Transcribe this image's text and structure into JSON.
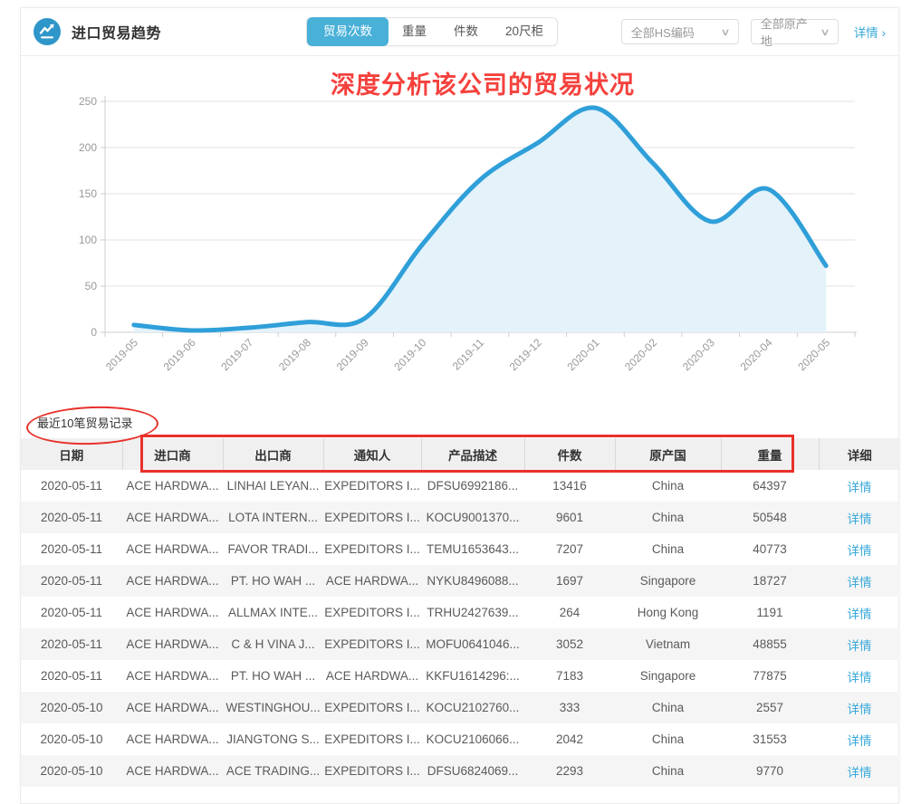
{
  "colors": {
    "accent_blue": "#49b0d8",
    "icon_blue": "#2e96c8",
    "chart_line": "#2f9fd9",
    "chart_fill": "#e4f2fa",
    "annotation_red": "#e8312b",
    "link_blue": "#3aa9d9"
  },
  "header": {
    "title": "进口贸易趋势",
    "tabs": [
      {
        "label": "贸易次数",
        "active": true
      },
      {
        "label": "重量",
        "active": false
      },
      {
        "label": "件数",
        "active": false
      },
      {
        "label": "20尺柜",
        "active": false
      }
    ],
    "filters": [
      {
        "value": "全部HS编码"
      },
      {
        "value": "全部原产地"
      }
    ],
    "details_link": "详情",
    "details_chevron": "›"
  },
  "annotation": {
    "chart_note": "深度分析该公司的贸易状况"
  },
  "chart_data": {
    "type": "area",
    "title": "",
    "xlabel": "",
    "ylabel": "",
    "categories": [
      "2019-05",
      "2019-06",
      "2019-07",
      "2019-08",
      "2019-09",
      "2019-10",
      "2019-11",
      "2019-12",
      "2020-01",
      "2020-02",
      "2020-03",
      "2020-04",
      "2020-05"
    ],
    "values": [
      8,
      2,
      5,
      11,
      15,
      95,
      165,
      205,
      243,
      183,
      120,
      155,
      72
    ],
    "ylim": [
      0,
      250
    ],
    "ytick_step": 50,
    "grid": true,
    "smooth": true,
    "legend_position": "none"
  },
  "records": {
    "section_title": "最近10笔贸易记录",
    "columns": [
      "日期",
      "进口商",
      "出口商",
      "通知人",
      "产品描述",
      "件数",
      "原产国",
      "重量",
      "详细"
    ],
    "detail_label": "详情",
    "rows": [
      {
        "date": "2020-05-11",
        "importer": "ACE HARDWA...",
        "exporter": "LINHAI LEYAN...",
        "notify": "EXPEDITORS I...",
        "product": "DFSU6992186...",
        "pieces": "13416",
        "origin": "China",
        "weight": "64397"
      },
      {
        "date": "2020-05-11",
        "importer": "ACE HARDWA...",
        "exporter": "LOTA INTERN...",
        "notify": "EXPEDITORS I...",
        "product": "KOCU9001370...",
        "pieces": "9601",
        "origin": "China",
        "weight": "50548"
      },
      {
        "date": "2020-05-11",
        "importer": "ACE HARDWA...",
        "exporter": "FAVOR TRADI...",
        "notify": "EXPEDITORS I...",
        "product": "TEMU1653643...",
        "pieces": "7207",
        "origin": "China",
        "weight": "40773"
      },
      {
        "date": "2020-05-11",
        "importer": "ACE HARDWA...",
        "exporter": "PT. HO WAH ...",
        "notify": "ACE HARDWA...",
        "product": "NYKU8496088...",
        "pieces": "1697",
        "origin": "Singapore",
        "weight": "18727"
      },
      {
        "date": "2020-05-11",
        "importer": "ACE HARDWA...",
        "exporter": "ALLMAX INTE...",
        "notify": "EXPEDITORS I...",
        "product": "TRHU2427639...",
        "pieces": "264",
        "origin": "Hong Kong",
        "weight": "1191"
      },
      {
        "date": "2020-05-11",
        "importer": "ACE HARDWA...",
        "exporter": "C & H VINA J...",
        "notify": "EXPEDITORS I...",
        "product": "MOFU0641046...",
        "pieces": "3052",
        "origin": "Vietnam",
        "weight": "48855"
      },
      {
        "date": "2020-05-11",
        "importer": "ACE HARDWA...",
        "exporter": "PT. HO WAH ...",
        "notify": "ACE HARDWA...",
        "product": "KKFU1614296:...",
        "pieces": "7183",
        "origin": "Singapore",
        "weight": "77875"
      },
      {
        "date": "2020-05-10",
        "importer": "ACE HARDWA...",
        "exporter": "WESTINGHOU...",
        "notify": "EXPEDITORS I...",
        "product": "KOCU2102760...",
        "pieces": "333",
        "origin": "China",
        "weight": "2557"
      },
      {
        "date": "2020-05-10",
        "importer": "ACE HARDWA...",
        "exporter": "JIANGTONG S...",
        "notify": "EXPEDITORS I...",
        "product": "KOCU2106066...",
        "pieces": "2042",
        "origin": "China",
        "weight": "31553"
      },
      {
        "date": "2020-05-10",
        "importer": "ACE HARDWA...",
        "exporter": "ACE TRADING...",
        "notify": "EXPEDITORS I...",
        "product": "DFSU6824069...",
        "pieces": "2293",
        "origin": "China",
        "weight": "9770"
      }
    ]
  }
}
